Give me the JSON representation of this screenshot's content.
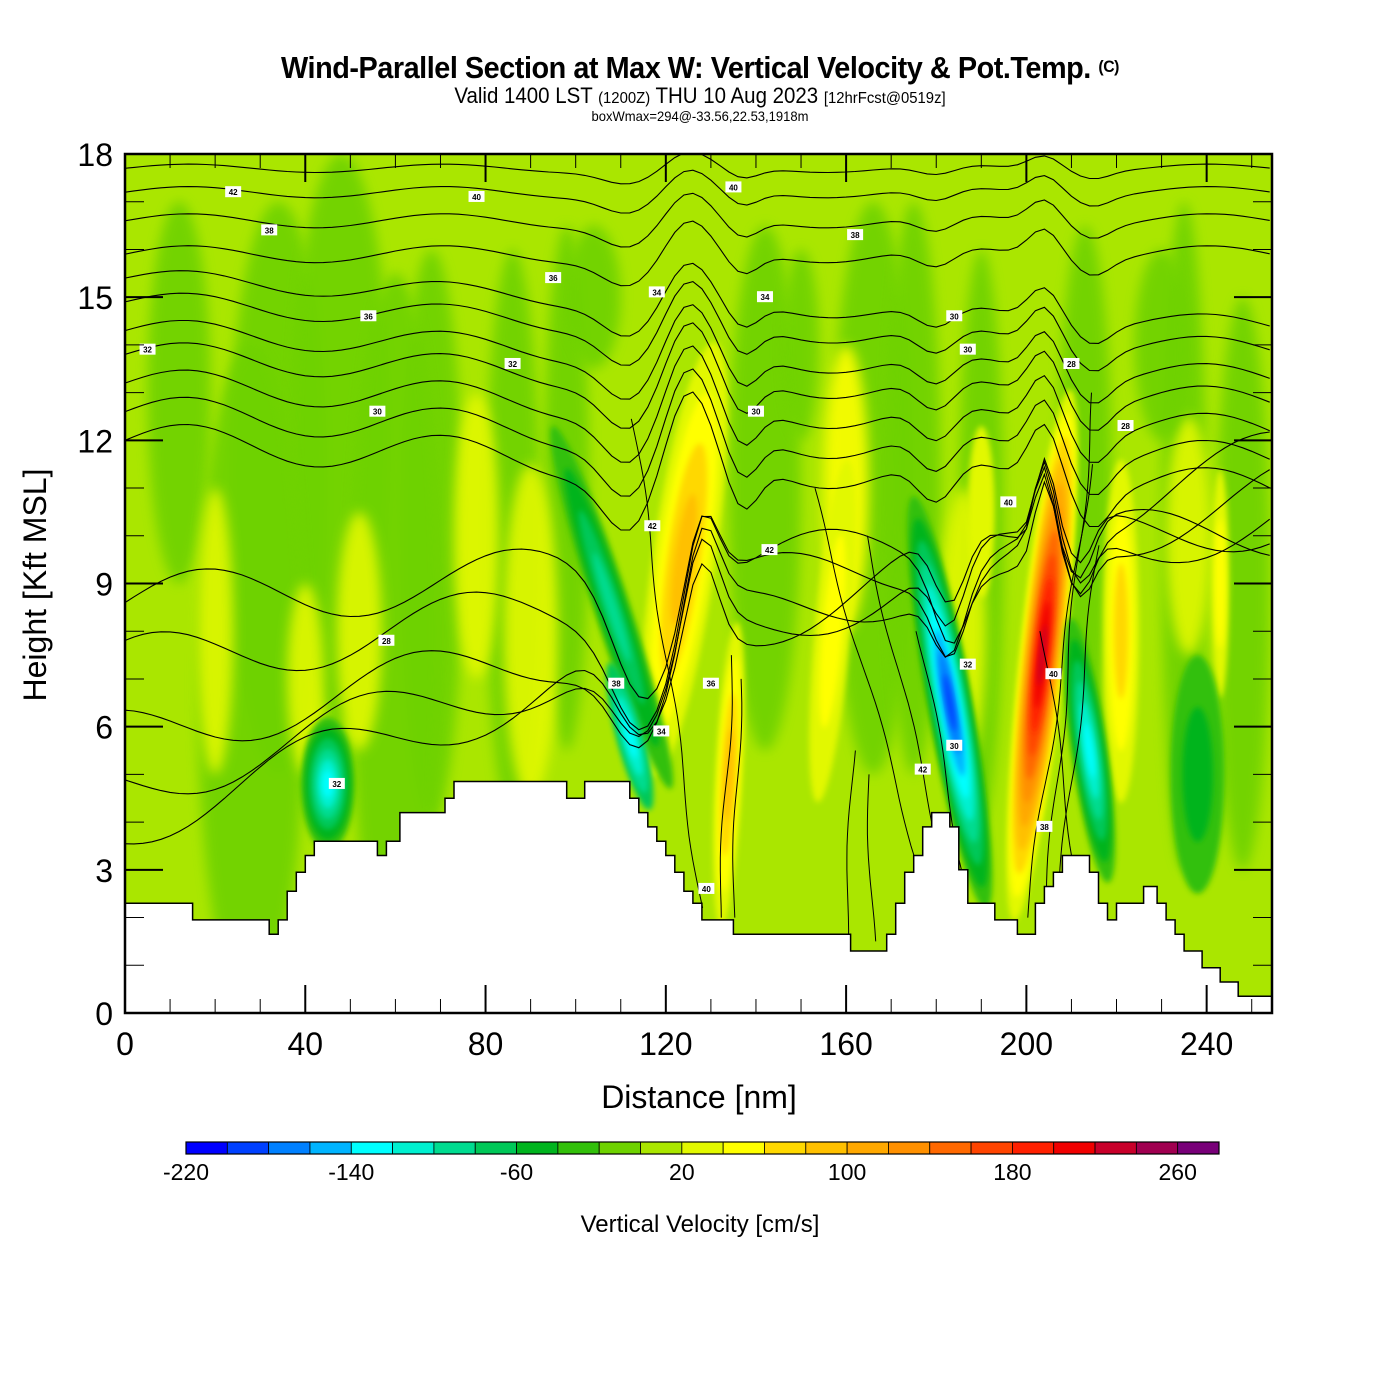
{
  "header": {
    "title": "Wind-Parallel Section at Max W: Vertical Velocity & Pot.Temp.",
    "title_sup": "(C)",
    "subtitle_a": "Valid 1400 LST",
    "subtitle_b": "(1200Z)",
    "subtitle_c": "THU 10 Aug 2023",
    "subtitle_d": "[12hrFcst@0519z]",
    "subtitle2": "boxWmax=294@-33.56,22.53,1918m"
  },
  "chart_data": {
    "type": "heatmap",
    "title": "Wind-Parallel Section at Max W: Vertical Velocity & Pot.Temp.",
    "xlabel": "Distance [nm]",
    "ylabel": "Height [Kft MSL]",
    "xlim": [
      0,
      254.5
    ],
    "ylim": [
      0,
      18
    ],
    "x_ticks": [
      "0",
      "40",
      "80",
      "120",
      "160",
      "200",
      "240"
    ],
    "x_tick_values": [
      0,
      40,
      80,
      120,
      160,
      200,
      240
    ],
    "x_minor_step": 10,
    "y_ticks": [
      "0",
      "3",
      "6",
      "9",
      "12",
      "15",
      "18"
    ],
    "y_tick_values": [
      0,
      3,
      6,
      9,
      12,
      15,
      18
    ],
    "y_minor_step": 1,
    "colorbar": {
      "label": "Vertical Velocity [cm/s]",
      "tick_labels": [
        "-220",
        "-140",
        "-60",
        "20",
        "100",
        "180",
        "260"
      ],
      "tick_values": [
        -220,
        -140,
        -60,
        20,
        100,
        180,
        260
      ],
      "bounds": [
        -220,
        280
      ],
      "step": 20,
      "colors": [
        "#0000ff",
        "#0040ff",
        "#0080ff",
        "#00b4ff",
        "#00ffff",
        "#00f0d0",
        "#00dc90",
        "#00c858",
        "#00b41e",
        "#32c00a",
        "#6ed200",
        "#aae600",
        "#e2f800",
        "#ffff00",
        "#ffd800",
        "#ffc000",
        "#ffa800",
        "#ff9000",
        "#ff6800",
        "#ff4400",
        "#ff2000",
        "#f00000",
        "#c8002a",
        "#a00050",
        "#780078"
      ]
    },
    "max_w": {
      "value": 294,
      "lat": -33.56,
      "lon": 22.53,
      "height_m": 1918
    },
    "contour_field": "Potential temperature",
    "contour_labels": [
      "42",
      "40",
      "40",
      "38",
      "38",
      "36",
      "36",
      "34",
      "34",
      "32",
      "32",
      "30",
      "30",
      "30",
      "30",
      "28",
      "28",
      "28",
      "42",
      "42",
      "40",
      "38",
      "36",
      "34",
      "32",
      "32",
      "30"
    ],
    "w_features": [
      {
        "name": "updraft",
        "x_nm": 124,
        "h_low": 2,
        "h_high": 14,
        "w_max": 100
      },
      {
        "name": "updraft",
        "x_nm": 134,
        "h_low": 2,
        "h_high": 8,
        "w_max": 100
      },
      {
        "name": "downdraft",
        "x_nm": 110,
        "h_low": 5,
        "h_high": 9,
        "w_min": -140
      },
      {
        "name": "downdraft",
        "x_nm": 44,
        "h_low": 3.5,
        "h_high": 6,
        "w_min": -140
      },
      {
        "name": "downdraft",
        "x_nm": 182,
        "h_low": 3,
        "h_high": 10,
        "w_min": -220
      },
      {
        "name": "updraft",
        "x_nm": 203,
        "h_low": 2,
        "h_high": 13.5,
        "w_max": 294
      },
      {
        "name": "downdraft",
        "x_nm": 214,
        "h_low": 3,
        "h_high": 8,
        "w_min": -140
      },
      {
        "name": "updraft",
        "x_nm": 221,
        "h_low": 3,
        "h_high": 10,
        "w_max": 60
      },
      {
        "name": "updraft",
        "x_nm": 157,
        "h_low": 2,
        "h_high": 10,
        "w_max": 40
      }
    ],
    "terrain_kft": [
      [
        0,
        2.3
      ],
      [
        15,
        2.3
      ],
      [
        15,
        1.95
      ],
      [
        32,
        1.95
      ],
      [
        32,
        1.65
      ],
      [
        34,
        1.65
      ],
      [
        34,
        1.95
      ],
      [
        36,
        1.95
      ],
      [
        36,
        2.55
      ],
      [
        38,
        2.55
      ],
      [
        38,
        2.95
      ],
      [
        40,
        2.95
      ],
      [
        40,
        3.3
      ],
      [
        42,
        3.3
      ],
      [
        42,
        3.6
      ],
      [
        56,
        3.6
      ],
      [
        56,
        3.3
      ],
      [
        58,
        3.3
      ],
      [
        58,
        3.6
      ],
      [
        61,
        3.6
      ],
      [
        61,
        4.2
      ],
      [
        71,
        4.2
      ],
      [
        71,
        4.5
      ],
      [
        73,
        4.5
      ],
      [
        73,
        4.85
      ],
      [
        98,
        4.85
      ],
      [
        98,
        4.5
      ],
      [
        102,
        4.5
      ],
      [
        102,
        4.85
      ],
      [
        112,
        4.85
      ],
      [
        112,
        4.5
      ],
      [
        114,
        4.5
      ],
      [
        114,
        4.2
      ],
      [
        116,
        4.2
      ],
      [
        116,
        3.9
      ],
      [
        118,
        3.9
      ],
      [
        118,
        3.6
      ],
      [
        120,
        3.6
      ],
      [
        120,
        3.3
      ],
      [
        122,
        3.3
      ],
      [
        122,
        2.95
      ],
      [
        124,
        2.95
      ],
      [
        124,
        2.55
      ],
      [
        126,
        2.55
      ],
      [
        126,
        2.3
      ],
      [
        128,
        2.3
      ],
      [
        128,
        1.95
      ],
      [
        135,
        1.95
      ],
      [
        135,
        1.65
      ],
      [
        161,
        1.65
      ],
      [
        161,
        1.3
      ],
      [
        169,
        1.3
      ],
      [
        169,
        1.65
      ],
      [
        171,
        1.65
      ],
      [
        171,
        2.3
      ],
      [
        173,
        2.3
      ],
      [
        173,
        2.95
      ],
      [
        175,
        2.95
      ],
      [
        175,
        3.3
      ],
      [
        177,
        3.3
      ],
      [
        177,
        3.9
      ],
      [
        179,
        3.9
      ],
      [
        179,
        4.2
      ],
      [
        183,
        4.2
      ],
      [
        183,
        3.9
      ],
      [
        185,
        3.9
      ],
      [
        185,
        3.0
      ],
      [
        187,
        3.0
      ],
      [
        187,
        2.3
      ],
      [
        193,
        2.3
      ],
      [
        193,
        1.95
      ],
      [
        198,
        1.95
      ],
      [
        198,
        1.65
      ],
      [
        202,
        1.65
      ],
      [
        202,
        2.3
      ],
      [
        204,
        2.3
      ],
      [
        204,
        2.65
      ],
      [
        206,
        2.65
      ],
      [
        206,
        2.95
      ],
      [
        208,
        2.95
      ],
      [
        208,
        3.3
      ],
      [
        214,
        3.3
      ],
      [
        214,
        2.95
      ],
      [
        216,
        2.95
      ],
      [
        216,
        2.3
      ],
      [
        218,
        2.3
      ],
      [
        218,
        1.95
      ],
      [
        220,
        1.95
      ],
      [
        220,
        2.3
      ],
      [
        226,
        2.3
      ],
      [
        226,
        2.65
      ],
      [
        229,
        2.65
      ],
      [
        229,
        2.3
      ],
      [
        231,
        2.3
      ],
      [
        231,
        1.95
      ],
      [
        233,
        1.95
      ],
      [
        233,
        1.65
      ],
      [
        235,
        1.65
      ],
      [
        235,
        1.3
      ],
      [
        239,
        1.3
      ],
      [
        239,
        0.95
      ],
      [
        243,
        0.95
      ],
      [
        243,
        0.65
      ],
      [
        247,
        0.65
      ],
      [
        247,
        0.35
      ],
      [
        254.5,
        0.35
      ]
    ]
  }
}
